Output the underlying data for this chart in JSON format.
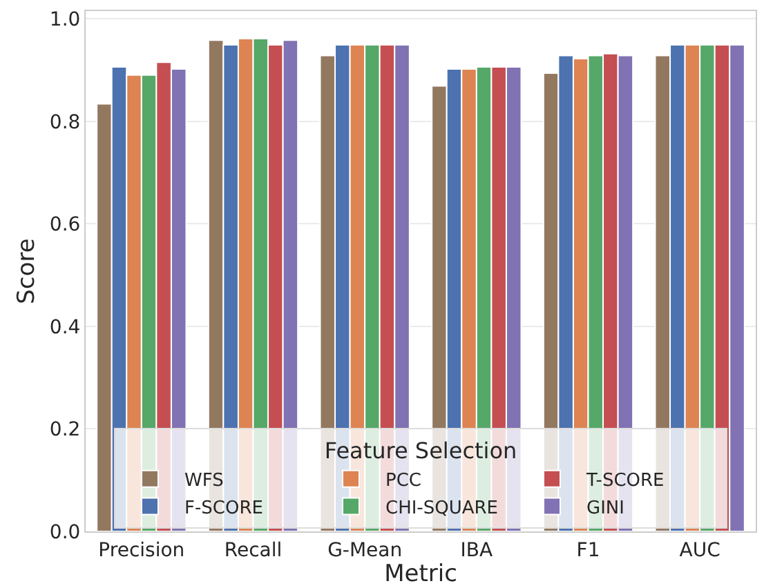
{
  "chart_data": {
    "type": "bar",
    "xlabel": "Metric",
    "ylabel": "Score",
    "legend_title": "Feature Selection",
    "categories": [
      "Precision",
      "Recall",
      "G-Mean",
      "IBA",
      "F1",
      "AUC"
    ],
    "series": [
      {
        "name": "WFS",
        "color": "#937860",
        "values": [
          0.834,
          0.958,
          0.928,
          0.869,
          0.894,
          0.928
        ]
      },
      {
        "name": "F-SCORE",
        "color": "#4c72b0",
        "values": [
          0.906,
          0.949,
          0.949,
          0.902,
          0.928,
          0.949
        ]
      },
      {
        "name": "PCC",
        "color": "#dd8452",
        "values": [
          0.89,
          0.961,
          0.949,
          0.902,
          0.922,
          0.949
        ]
      },
      {
        "name": "CHI-SQUARE",
        "color": "#55a868",
        "values": [
          0.89,
          0.961,
          0.949,
          0.906,
          0.928,
          0.949
        ]
      },
      {
        "name": "T-SCORE",
        "color": "#c44e52",
        "values": [
          0.915,
          0.949,
          0.949,
          0.906,
          0.932,
          0.949
        ]
      },
      {
        "name": "GINI",
        "color": "#8172b3",
        "values": [
          0.902,
          0.958,
          0.949,
          0.906,
          0.928,
          0.949
        ]
      }
    ],
    "ylim": [
      0,
      1.015
    ],
    "yticks": [
      {
        "value": 0,
        "label": "0.0"
      },
      {
        "value": 0.2,
        "label": "0.2"
      },
      {
        "value": 0.4,
        "label": "0.4"
      },
      {
        "value": 0.6,
        "label": "0.6"
      },
      {
        "value": 0.8,
        "label": "0.8"
      },
      {
        "value": 1.0,
        "label": "1.0"
      }
    ],
    "grid": "y",
    "legend": "bottom"
  }
}
